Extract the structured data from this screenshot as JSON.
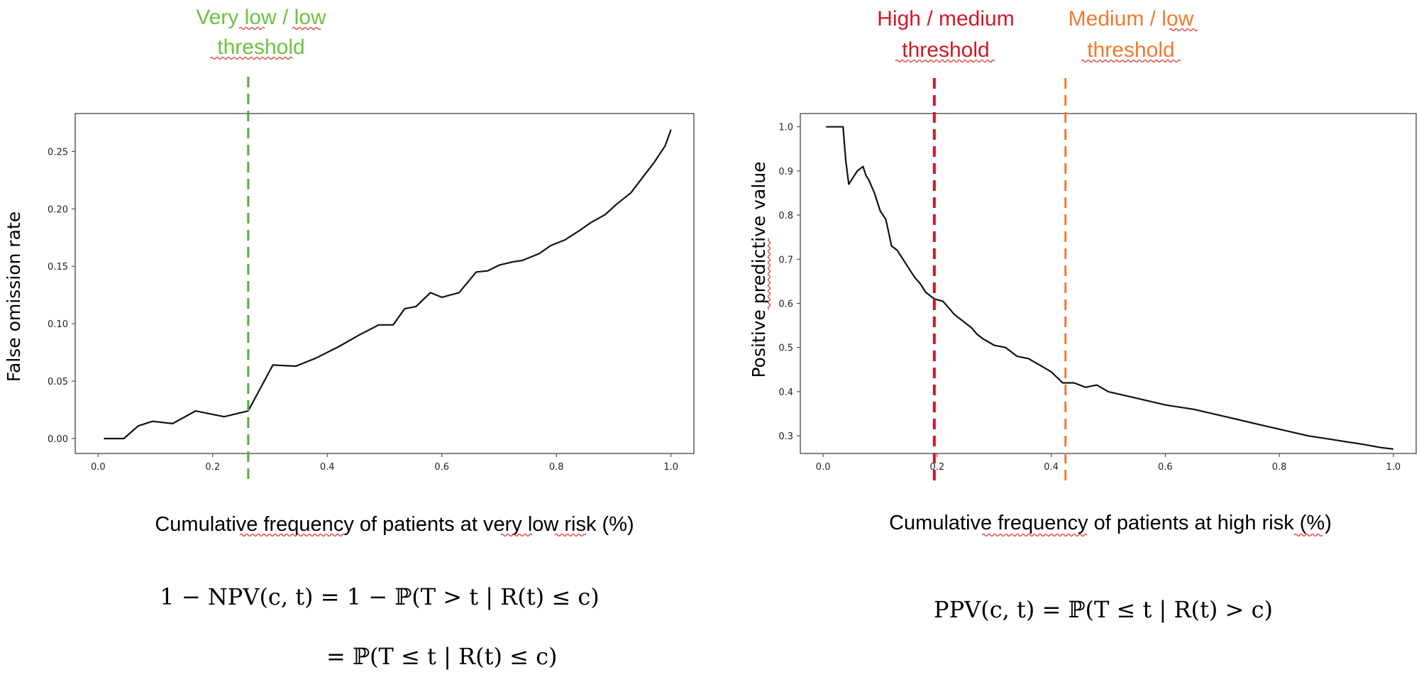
{
  "colors": {
    "green": "#6cc43c",
    "green_line": "#5aaa3a",
    "red": "#d01826",
    "orange": "#f07a30",
    "line": "#111111",
    "axis": "#333333"
  },
  "chart_data": [
    {
      "type": "line",
      "ylabel": "False omission rate",
      "xlabel": "Cumulative frequency of patients at very low risk (%)",
      "xlim": [
        -0.04,
        1.04
      ],
      "ylim": [
        -0.013,
        0.283
      ],
      "xticks": [
        "0.0",
        "0.2",
        "0.4",
        "0.6",
        "0.8",
        "1.0"
      ],
      "xtick_values": [
        0.0,
        0.2,
        0.4,
        0.6,
        0.8,
        1.0
      ],
      "yticks": [
        "0.00",
        "0.05",
        "0.10",
        "0.15",
        "0.20",
        "0.25"
      ],
      "ytick_values": [
        0.0,
        0.05,
        0.1,
        0.15,
        0.2,
        0.25
      ],
      "threshold": {
        "label_line1": "Very low / low",
        "label_line2": "threshold",
        "x": 0.262,
        "color": "green"
      },
      "formula_line1": "1 − NPV(c, t) = 1 − ℙ(T > t | R(t) ≤ c)",
      "formula_line2": "= ℙ(T ≤ t | R(t) ≤ c)",
      "x": [
        0.01,
        0.045,
        0.07,
        0.095,
        0.13,
        0.17,
        0.22,
        0.262,
        0.305,
        0.345,
        0.38,
        0.42,
        0.455,
        0.49,
        0.515,
        0.535,
        0.555,
        0.58,
        0.6,
        0.63,
        0.66,
        0.68,
        0.7,
        0.725,
        0.74,
        0.77,
        0.79,
        0.815,
        0.84,
        0.86,
        0.885,
        0.905,
        0.93,
        0.95,
        0.97,
        0.99,
        1.0
      ],
      "y": [
        0.0,
        0.0,
        0.011,
        0.015,
        0.013,
        0.024,
        0.019,
        0.024,
        0.064,
        0.063,
        0.07,
        0.08,
        0.09,
        0.099,
        0.099,
        0.113,
        0.115,
        0.127,
        0.123,
        0.127,
        0.145,
        0.146,
        0.151,
        0.154,
        0.155,
        0.161,
        0.168,
        0.173,
        0.181,
        0.188,
        0.195,
        0.204,
        0.214,
        0.227,
        0.24,
        0.255,
        0.269
      ]
    },
    {
      "type": "line",
      "ylabel": "Positive predictive value",
      "xlabel": "Cumulative frequency of patients at high risk (%)",
      "xlim": [
        -0.04,
        1.04
      ],
      "ylim": [
        0.26,
        1.03
      ],
      "xticks": [
        "0.0",
        "0.2",
        "0.4",
        "0.6",
        "0.8",
        "1.0"
      ],
      "xtick_values": [
        0.0,
        0.2,
        0.4,
        0.6,
        0.8,
        1.0
      ],
      "yticks": [
        "0.3",
        "0.4",
        "0.5",
        "0.6",
        "0.7",
        "0.8",
        "0.9",
        "1.0"
      ],
      "ytick_values": [
        0.3,
        0.4,
        0.5,
        0.6,
        0.7,
        0.8,
        0.9,
        1.0
      ],
      "thresholds": [
        {
          "label_line1": "High / medium",
          "label_line2": "threshold",
          "x": 0.195,
          "color": "red"
        },
        {
          "label_line1": "Medium / low",
          "label_line2": "threshold",
          "x": 0.425,
          "color": "orange"
        }
      ],
      "formula": "PPV(c, t) =  ℙ(T  ≤ t | R(t) > c)",
      "x": [
        0.005,
        0.035,
        0.038,
        0.04,
        0.045,
        0.05,
        0.06,
        0.07,
        0.075,
        0.08,
        0.09,
        0.1,
        0.11,
        0.12,
        0.13,
        0.14,
        0.15,
        0.16,
        0.17,
        0.18,
        0.195,
        0.21,
        0.22,
        0.23,
        0.24,
        0.25,
        0.26,
        0.27,
        0.28,
        0.3,
        0.32,
        0.33,
        0.34,
        0.36,
        0.38,
        0.4,
        0.42,
        0.44,
        0.46,
        0.48,
        0.5,
        0.55,
        0.6,
        0.65,
        0.7,
        0.75,
        0.8,
        0.85,
        0.9,
        0.95,
        0.98,
        1.0
      ],
      "y": [
        1.0,
        1.0,
        0.95,
        0.92,
        0.87,
        0.88,
        0.9,
        0.91,
        0.89,
        0.88,
        0.85,
        0.81,
        0.79,
        0.73,
        0.72,
        0.7,
        0.68,
        0.66,
        0.645,
        0.625,
        0.61,
        0.605,
        0.59,
        0.575,
        0.565,
        0.555,
        0.545,
        0.53,
        0.52,
        0.505,
        0.5,
        0.49,
        0.48,
        0.475,
        0.46,
        0.445,
        0.42,
        0.42,
        0.41,
        0.415,
        0.4,
        0.385,
        0.37,
        0.36,
        0.345,
        0.33,
        0.315,
        0.3,
        0.29,
        0.28,
        0.273,
        0.27
      ]
    }
  ]
}
